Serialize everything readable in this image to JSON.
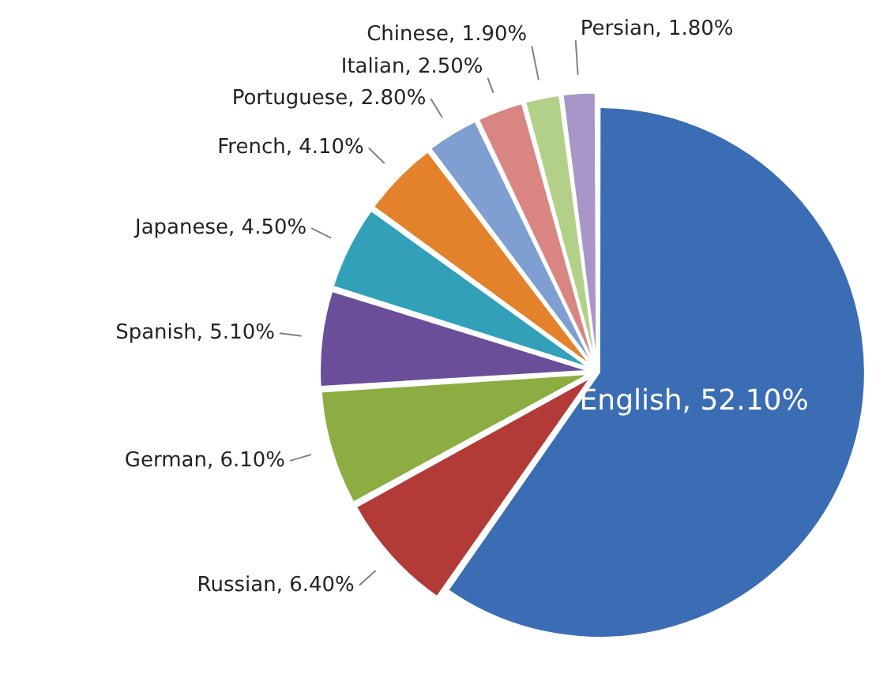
{
  "chart_data": {
    "type": "pie",
    "categories": [
      "English",
      "Russian",
      "German",
      "Spanish",
      "Japanese",
      "French",
      "Portuguese",
      "Italian",
      "Chinese",
      "Persian"
    ],
    "values": [
      52.1,
      6.4,
      6.1,
      5.1,
      4.5,
      4.1,
      2.8,
      2.5,
      1.9,
      1.8
    ],
    "value_labels": [
      "52.10%",
      "6.40%",
      "6.10%",
      "5.10%",
      "4.50%",
      "4.10%",
      "2.80%",
      "2.50%",
      "1.90%",
      "1.80%"
    ],
    "colors": [
      "#3a6db3",
      "#b23b37",
      "#8bad42",
      "#6b4e99",
      "#33a0ba",
      "#e4812b",
      "#7f9fd2",
      "#d98683",
      "#b3d088",
      "#a796c7"
    ],
    "legend": false
  }
}
